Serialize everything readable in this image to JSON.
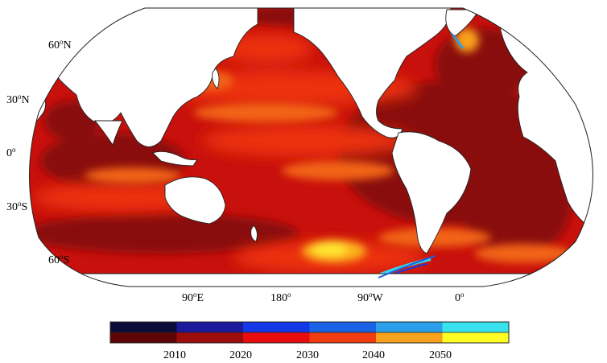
{
  "map": {
    "lat_labels": [
      {
        "deg": "60",
        "hemi": "N"
      },
      {
        "deg": "30",
        "hemi": "N"
      },
      {
        "deg": "0",
        "hemi": ""
      },
      {
        "deg": "30",
        "hemi": "S"
      },
      {
        "deg": "60",
        "hemi": "S"
      }
    ],
    "lon_labels": [
      {
        "deg": "90",
        "hemi": "E"
      },
      {
        "deg": "180",
        "hemi": ""
      },
      {
        "deg": "90",
        "hemi": "W"
      },
      {
        "deg": "0",
        "hemi": ""
      }
    ],
    "degree_symbol": "o"
  },
  "colorbar": {
    "ticks": [
      "2010",
      "2020",
      "2030",
      "2040",
      "2050"
    ],
    "top_row_colors": [
      "#0c0c3a",
      "#1a1a9a",
      "#1238e8",
      "#1a62e6",
      "#2aa0ea",
      "#38e2ec"
    ],
    "bottom_row_colors": [
      "#5e0606",
      "#9c0c0c",
      "#e80c0c",
      "#f23c10",
      "#f6a21c",
      "#fffd24"
    ]
  },
  "colors": {
    "ocean_base": "#c8100c",
    "deep_red": "#8a0a08",
    "orange": "#f26418",
    "yellow": "#ffe830",
    "land": "#ffffff"
  }
}
